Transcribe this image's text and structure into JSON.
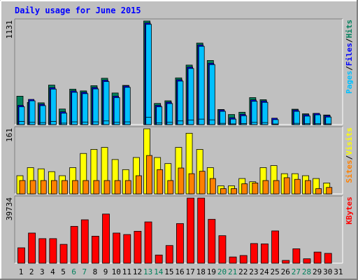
{
  "chart_data": {
    "type": "bar",
    "title": "Daily usage for June 2015",
    "categories": [
      "1",
      "2",
      "3",
      "4",
      "5",
      "6",
      "7",
      "8",
      "9",
      "10",
      "11",
      "12",
      "13",
      "14",
      "15",
      "16",
      "17",
      "18",
      "19",
      "20",
      "21",
      "22",
      "23",
      "24",
      "25",
      "26",
      "27",
      "28",
      "29",
      "30",
      "31"
    ],
    "weekend_days": [
      "6",
      "7",
      "13",
      "14",
      "20",
      "21",
      "27",
      "28"
    ],
    "panels": [
      {
        "name": "hits-files-pages",
        "ymax_label": "1131",
        "ymax": 1131,
        "legend": [
          "Pages",
          "/",
          "Files",
          "/",
          "Hits"
        ],
        "series": [
          {
            "name": "Hits",
            "values": [
              310,
              242,
              238,
              431,
              170,
              387,
              368,
              425,
              506,
              345,
              428,
              0,
              1131,
              231,
              260,
              510,
              650,
              890,
              700,
              165,
              110,
              135,
              295,
              272,
              0,
              0,
              168,
              118,
              122,
              105,
              0
            ]
          },
          {
            "name": "Files",
            "values": [
              210,
              275,
              222,
              403,
              140,
              368,
              353,
              405,
              485,
              310,
              422,
              0,
              1110,
              210,
              245,
              490,
              628,
              870,
              670,
              160,
              75,
              112,
              270,
              258,
              70,
              0,
              160,
              108,
              122,
              98,
              0
            ]
          },
          {
            "name": "Pages",
            "values": [
              35,
              25,
              22,
              35,
              16,
              30,
              28,
              30,
              40,
              25,
              30,
              0,
              80,
              18,
              25,
              40,
              50,
              60,
              52,
              14,
              8,
              12,
              24,
              22,
              7,
              0,
              14,
              10,
              10,
              8,
              0
            ]
          }
        ]
      },
      {
        "name": "visits-sites",
        "ymax_label": "161",
        "ymax": 161,
        "legend": [
          "Sites",
          "/",
          "Visits"
        ],
        "series": [
          {
            "name": "Visits",
            "values": [
              45,
              65,
              62,
              55,
              45,
              65,
              100,
              110,
              115,
              85,
              60,
              90,
              161,
              90,
              75,
              115,
              150,
              110,
              65,
              20,
              20,
              38,
              30,
              65,
              70,
              50,
              50,
              45,
              38,
              27,
              0
            ]
          },
          {
            "name": "Sites",
            "values": [
              33,
              33,
              33,
              33,
              33,
              33,
              33,
              33,
              33,
              33,
              33,
              45,
              95,
              60,
              33,
              64,
              50,
              56,
              38,
              13,
              13,
              25,
              27,
              33,
              33,
              40,
              36,
              33,
              13,
              16,
              0
            ]
          }
        ]
      },
      {
        "name": "kbytes",
        "ymax_label": "39734",
        "ymax": 39734,
        "legend": [
          "KBytes"
        ],
        "series": [
          {
            "name": "KBytes",
            "values": [
              9400,
              18400,
              15000,
              15000,
              11500,
              22500,
              26500,
              16500,
              30000,
              18400,
              17500,
              19500,
              25200,
              5000,
              10800,
              24200,
              39734,
              39734,
              26800,
              16800,
              3800,
              4700,
              12000,
              11800,
              19700,
              1700,
              8800,
              2700,
              6800,
              6000,
              0
            ]
          }
        ]
      }
    ],
    "colors": {
      "background": "#c0c0c0",
      "plot_bg": "#c0c0c0",
      "title": "#0000ff",
      "hits": "#00805c",
      "files": "#0000ff",
      "pages": "#00c0ff",
      "visits": "#ffff00",
      "sites": "#ff8000",
      "kbytes": "#ff0000",
      "weekend_label": "#00805c",
      "weekday_label": "#000000"
    }
  }
}
